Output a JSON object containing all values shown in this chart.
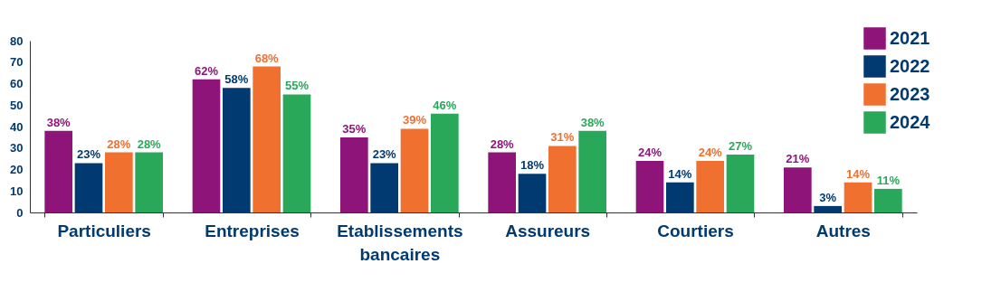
{
  "chart_data": {
    "type": "bar",
    "categories": [
      "Particuliers",
      "Entreprises",
      "Etablissements bancaires",
      "Assureurs",
      "Courtiers",
      "Autres"
    ],
    "series": [
      {
        "name": "2021",
        "color": "#8e1479",
        "values": [
          38,
          62,
          35,
          28,
          24,
          21
        ],
        "value_labels": [
          "38%",
          "62%",
          "35%",
          "28%",
          "24%",
          "21%"
        ]
      },
      {
        "name": "2022",
        "color": "#003a70",
        "values": [
          23,
          58,
          23,
          18,
          14,
          3
        ],
        "value_labels": [
          "23%",
          "58%",
          "23%",
          "18%",
          "14%",
          "3%"
        ]
      },
      {
        "name": "2023",
        "color": "#f07030",
        "values": [
          28,
          68,
          39,
          31,
          24,
          14
        ],
        "value_labels": [
          "28%",
          "68%",
          "39%",
          "31%",
          "24%",
          "14%"
        ]
      },
      {
        "name": "2024",
        "color": "#2aa85a",
        "values": [
          28,
          55,
          46,
          38,
          27,
          11
        ],
        "value_labels": [
          "28%",
          "55%",
          "46%",
          "38%",
          "27%",
          "11%"
        ]
      }
    ],
    "ylim": [
      0,
      80
    ],
    "yticks": [
      0,
      10,
      20,
      30,
      40,
      50,
      60,
      70,
      80
    ],
    "grid": false,
    "legend": "top right"
  }
}
